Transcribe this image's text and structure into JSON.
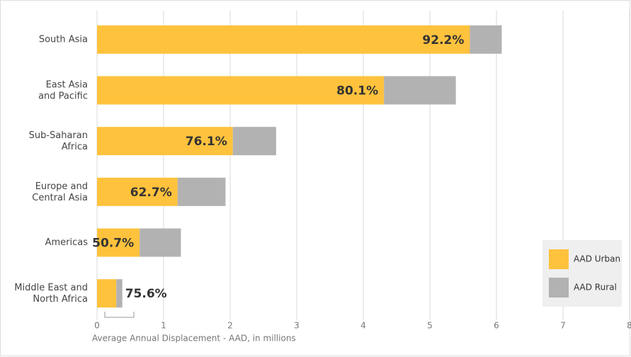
{
  "chart_data": {
    "type": "stacked-barh",
    "categories": [
      "South Asia",
      "East Asia\nand Pacific",
      "Sub-Saharan\nAfrica",
      "Europe and\nCentral Asia",
      "Americas",
      "Middle East and\nNorth Africa"
    ],
    "series": [
      {
        "name": "AAD Urban",
        "color": "#fec23d",
        "values": [
          5.6,
          4.31,
          2.04,
          1.21,
          0.64,
          0.29
        ]
      },
      {
        "name": "AAD Rural",
        "color": "#b2b2b2",
        "values": [
          0.48,
          1.08,
          0.65,
          0.72,
          0.62,
          0.09
        ]
      }
    ],
    "urban_share": {
      "values": [
        92.2,
        80.1,
        76.1,
        62.7,
        50.7,
        75.6
      ],
      "value_labels": [
        "92.2%",
        "80.1%",
        "76.1%",
        "62.7%",
        "50.7%",
        "75.6%"
      ]
    },
    "xlabel": "Average Annual Displacement - AAD, in millions",
    "xlim": [
      0,
      8
    ],
    "xticks": [
      0,
      1,
      2,
      3,
      4,
      5,
      6,
      7,
      8
    ],
    "grid": true,
    "legend": "bottom-right"
  }
}
